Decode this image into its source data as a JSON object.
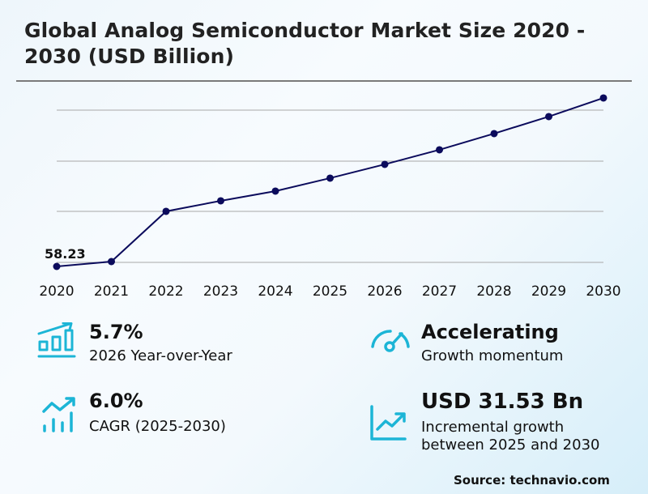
{
  "header": {
    "title": "Global Analog Semiconductor Market Size 2020 - 2030 (USD Billion)"
  },
  "chart_data": {
    "type": "line",
    "title": "Global Analog Semiconductor Market Size 2020 - 2030 (USD Billion)",
    "xlabel": "",
    "ylabel": "",
    "categories": [
      "2020",
      "2021",
      "2022",
      "2023",
      "2024",
      "2025",
      "2026",
      "2027",
      "2028",
      "2029",
      "2030"
    ],
    "series": [
      {
        "name": "Market Size (USD Billion)",
        "values": [
          58.23,
          60.14,
          79.9,
          84.04,
          87.86,
          92.96,
          98.38,
          104.11,
          110.48,
          117.17,
          124.49
        ]
      }
    ],
    "annotations": [
      {
        "x": "2020",
        "label": "58.23"
      }
    ],
    "grid": true,
    "gridlines_count": 4,
    "legend": "none",
    "line_color": "#0b0b5c"
  },
  "kpis": [
    {
      "icon": "bar-chart-growth-icon",
      "value": "5.7%",
      "label": "2026 Year-over-Year"
    },
    {
      "icon": "speedometer-icon",
      "value": "Accelerating",
      "label": "Growth momentum"
    },
    {
      "icon": "trend-up-bars-icon",
      "value": "6.0%",
      "label": "CAGR (2025-2030)"
    },
    {
      "icon": "line-chart-growth-icon",
      "value": "USD 31.53 Bn",
      "label_line1": "Incremental growth",
      "label_line2": "between 2025 and 2030"
    }
  ],
  "footer": {
    "source": "Source: technavio.com"
  },
  "colors": {
    "accent": "#1cb5d6",
    "line": "#0b0b5c",
    "grid": "#a8a8a8"
  }
}
